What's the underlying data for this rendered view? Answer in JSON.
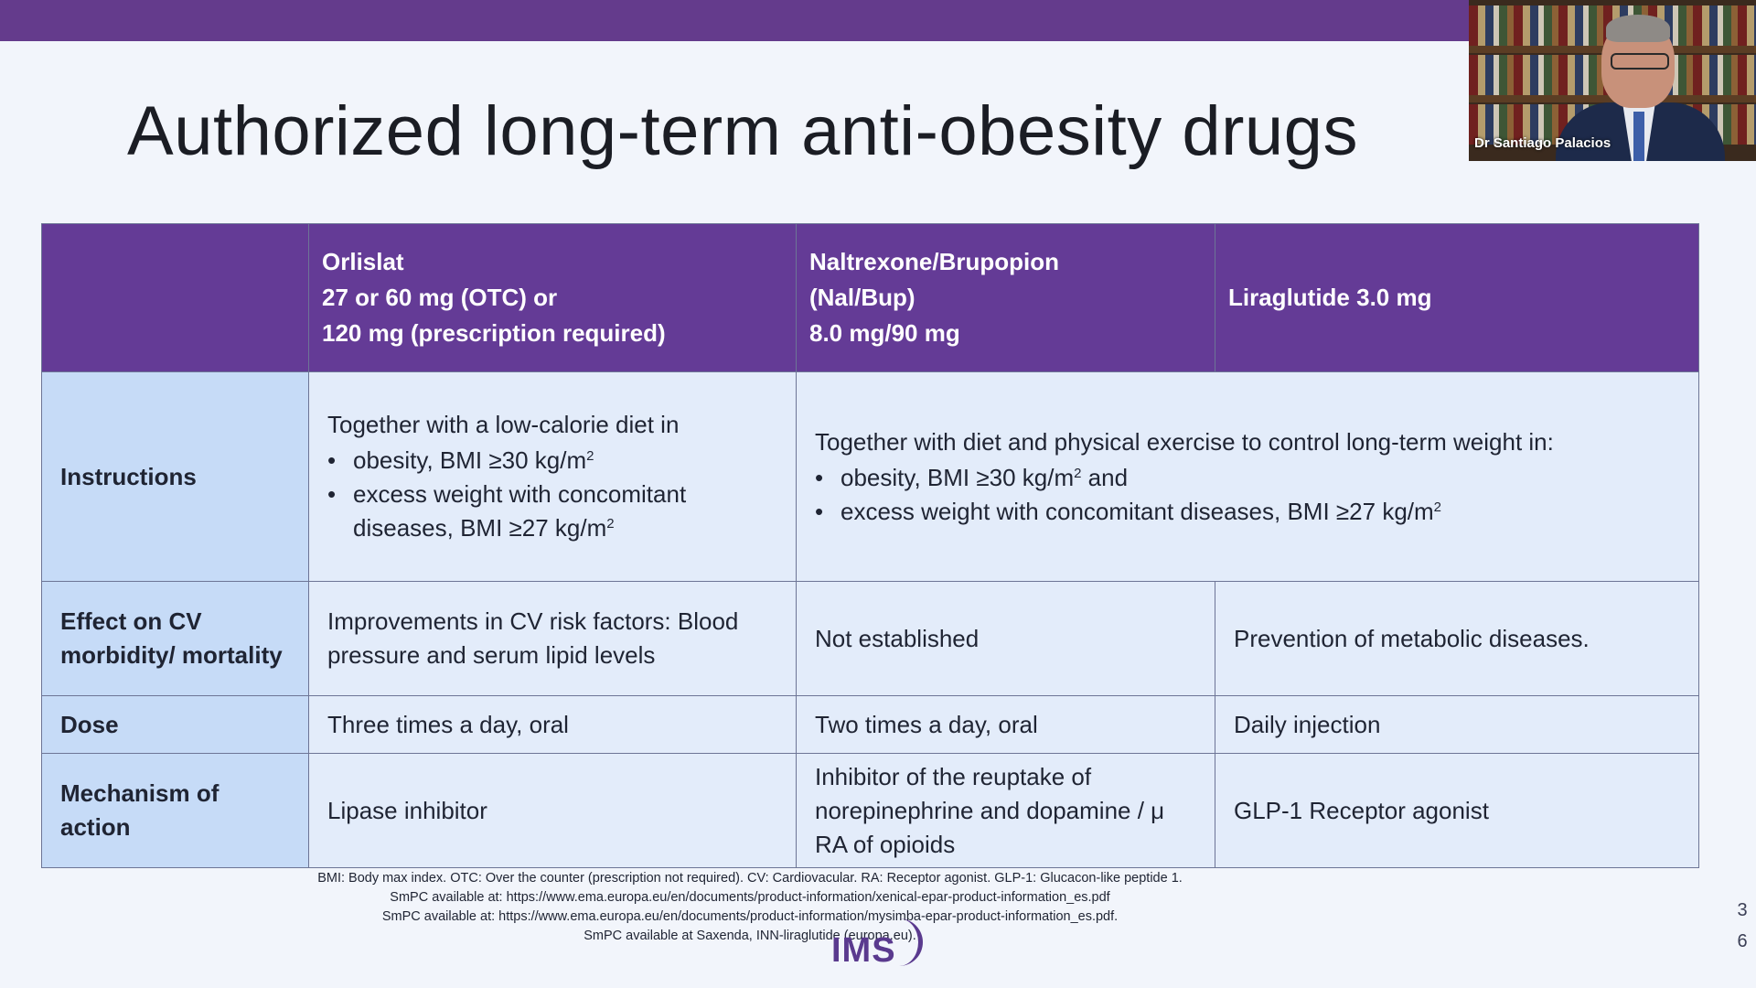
{
  "slide": {
    "title": "Authorized long-term anti-obesity drugs",
    "colors": {
      "top_bar": "#643b8c",
      "header_bg": "#643b96",
      "label_bg": "#c6dbf7",
      "cell_bg": "#e3ecfa"
    }
  },
  "webcam": {
    "speaker_name": "Dr Santiago Palacios"
  },
  "table": {
    "headers": {
      "col1": "",
      "col2": [
        "Orlislat",
        "27 or 60 mg (OTC) or",
        "120 mg (prescription required)"
      ],
      "col3": [
        "Naltrexone/Brupopion",
        "(Nal/Bup)",
        "8.0 mg/90 mg"
      ],
      "col4": [
        "Liraglutide  3.0 mg"
      ]
    },
    "instructions": {
      "label": "Instructions",
      "orlistat_intro": "Together with a low-calorie diet in",
      "orlistat_bullet1": "obesity, BMI ≥30 kg/m",
      "orlistat_bullet2": "excess weight with concomitant diseases,  BMI ≥27 kg/m",
      "others_intro": "Together with diet and physical exercise to control long-term weight in:",
      "others_bullet1": "obesity, BMI ≥30 kg/m",
      "others_bullet1_tail": " and",
      "others_bullet2": "excess weight with concomitant diseases,  BMI ≴27 kg/m",
      "sup": "2"
    },
    "cv_effect": {
      "label": "Effect on CV morbidity/ mortality",
      "orlistat": "Improvements in CV risk factors: Blood pressure and serum lipid levels",
      "nalbup": "Not established",
      "liraglutide": "Prevention of metabolic diseases."
    },
    "dose": {
      "label": "Dose",
      "orlistat": "Three times a day, oral",
      "nalbup": "Two times a day, oral",
      "liraglutide": "Daily injection"
    },
    "mechanism": {
      "label": "Mechanism of action",
      "orlistat": "Lipase inhibitor",
      "nalbup": "Inhibitor of the reuptake of norepinephrine and dopamine / μ RA of opioids",
      "liraglutide": "GLP-1 Receptor agonist"
    }
  },
  "footnotes": [
    "BMI: Body max index. OTC: Over the counter (prescription not required). CV: Cardiovacular. RA: Receptor agonist. GLP-1: Glucacon-like peptide 1.",
    "SmPC available at: https://www.ema.europa.eu/en/documents/product-information/xenical-epar-product-information_es.pdf",
    "SmPC available at: https://www.ema.europa.eu/en/documents/product-information/mysimba-epar-product-information_es.pdf.",
    "SmPC available at  Saxenda, INN-liraglutide (europa.eu)."
  ],
  "logo_text": "IMS",
  "page_number": [
    "3",
    "6"
  ]
}
